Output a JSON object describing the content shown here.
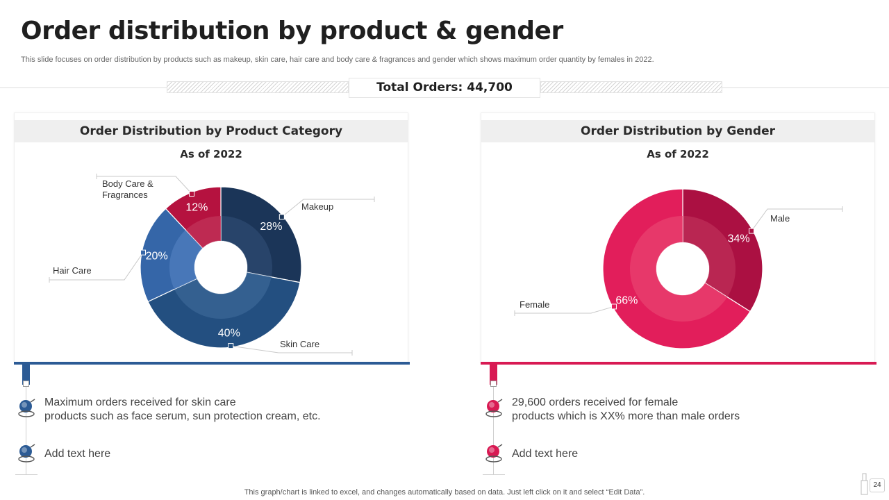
{
  "slide": {
    "title": "Order distribution by product & gender",
    "subtitle": "This slide focuses on order distribution by products such as makeup, skin care, hair care and body care & fragrances and gender which shows maximum order quantity by females in 2022.",
    "total_orders": "Total Orders: 44,700",
    "footer": "This graph/chart is linked to excel, and changes automatically based on data. Just left click on it and select “Edit Data”.",
    "page_number": "24"
  },
  "panels": {
    "product": {
      "header": "Order Distribution by Product Category",
      "as_of": "As of 2022",
      "accent": "#2c5b95",
      "notes": [
        {
          "line1": "Maximum orders received for skin care",
          "line2": "products such as face serum, sun protection cream, etc."
        },
        {
          "line1": "Add text here",
          "line2": ""
        }
      ]
    },
    "gender": {
      "header": "Order Distribution by Gender",
      "as_of": "As of 2022",
      "accent": "#d81a53",
      "notes": [
        {
          "line1": "29,600 orders received for female",
          "line2": "products which is XX% more than male orders"
        },
        {
          "line1": "Add text here",
          "line2": ""
        }
      ]
    }
  },
  "chart_data": [
    {
      "type": "pie",
      "variant": "donut",
      "title": "Order Distribution by Product Category",
      "subtitle": "As of 2022",
      "categories": [
        "Makeup",
        "Skin Care",
        "Hair Care",
        "Body Care & Fragrances"
      ],
      "values": [
        28,
        40,
        20,
        12
      ],
      "value_labels": [
        "28%",
        "40%",
        "20%",
        "12%"
      ],
      "label_lines": [
        [
          "Makeup"
        ],
        [
          "Skin Care"
        ],
        [
          "Hair Care"
        ],
        [
          "Body Care &",
          "Fragrances"
        ]
      ],
      "colors": [
        "#1b3558",
        "#234f80",
        "#3566a8",
        "#b5123f"
      ],
      "inner_colors": [
        "#2d4a70",
        "#3b6596",
        "#4f7ebe",
        "#c23359"
      ]
    },
    {
      "type": "pie",
      "variant": "donut",
      "title": "Order Distribution by Gender",
      "subtitle": "As of 2022",
      "categories": [
        "Male",
        "Female"
      ],
      "values": [
        34,
        66
      ],
      "value_labels": [
        "34%",
        "66%"
      ],
      "label_lines": [
        [
          "Male"
        ],
        [
          "Female"
        ]
      ],
      "colors": [
        "#ab1042",
        "#e21e5b"
      ],
      "inner_colors": [
        "#bd2d58",
        "#e8416f"
      ]
    }
  ]
}
